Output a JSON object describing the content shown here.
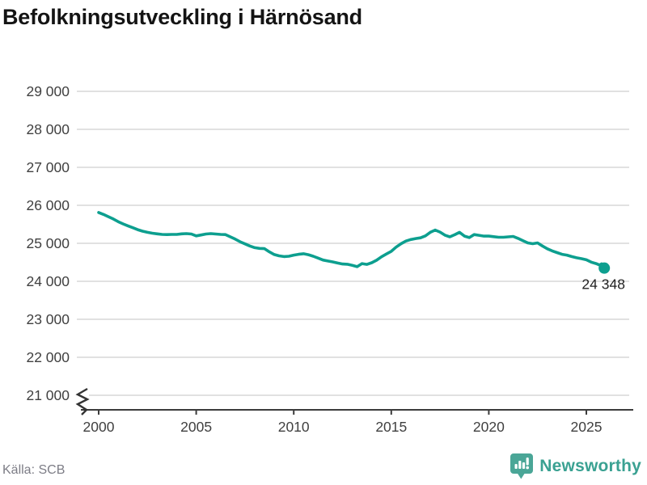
{
  "header": {
    "title": "Befolkningsutveckling i Härnösand"
  },
  "footer": {
    "source": "Källa: SCB",
    "brand": "Newsworthy",
    "brand_icon": "newsworthy-bar-chart-bubble-icon",
    "brand_color": "#3aa192",
    "brand_icon_color": "#4aa697"
  },
  "chart_data": {
    "type": "line",
    "title": "Befolkningsutveckling i Härnösand",
    "xlabel": "",
    "ylabel": "",
    "grid": "horizontal",
    "gridline_color": "#e1e1e1",
    "axis_color": "#3c3c3c",
    "tick_label_color": "#404040",
    "broken_axis": true,
    "x_axis": {
      "ticks": [
        2000,
        2005,
        2010,
        2015,
        2020,
        2025
      ],
      "range": [
        1998.9,
        2027.4
      ]
    },
    "y_axis": {
      "range": [
        21000,
        29000
      ],
      "ticks": [
        {
          "value": 21000,
          "label": "21 000"
        },
        {
          "value": 22000,
          "label": "22 000"
        },
        {
          "value": 23000,
          "label": "23 000"
        },
        {
          "value": 24000,
          "label": "24 000"
        },
        {
          "value": 25000,
          "label": "25 000"
        },
        {
          "value": 26000,
          "label": "26 000"
        },
        {
          "value": 27000,
          "label": "27 000"
        },
        {
          "value": 28000,
          "label": "28 000"
        },
        {
          "value": 29000,
          "label": "29 000"
        }
      ]
    },
    "end_annotation": {
      "label": "24 348",
      "value": 24348
    },
    "series": [
      {
        "name": "Befolkning",
        "color": "#0d9f8f",
        "points": [
          [
            2000.0,
            25810
          ],
          [
            2000.25,
            25760
          ],
          [
            2000.5,
            25700
          ],
          [
            2000.75,
            25640
          ],
          [
            2001.0,
            25570
          ],
          [
            2001.25,
            25510
          ],
          [
            2001.5,
            25460
          ],
          [
            2001.75,
            25410
          ],
          [
            2002.0,
            25360
          ],
          [
            2002.25,
            25320
          ],
          [
            2002.5,
            25290
          ],
          [
            2002.75,
            25265
          ],
          [
            2003.0,
            25250
          ],
          [
            2003.25,
            25235
          ],
          [
            2003.5,
            25230
          ],
          [
            2003.75,
            25235
          ],
          [
            2004.0,
            25235
          ],
          [
            2004.25,
            25250
          ],
          [
            2004.5,
            25255
          ],
          [
            2004.75,
            25245
          ],
          [
            2005.0,
            25195
          ],
          [
            2005.25,
            25220
          ],
          [
            2005.5,
            25245
          ],
          [
            2005.75,
            25255
          ],
          [
            2006.0,
            25245
          ],
          [
            2006.25,
            25235
          ],
          [
            2006.5,
            25230
          ],
          [
            2006.75,
            25170
          ],
          [
            2007.0,
            25110
          ],
          [
            2007.25,
            25040
          ],
          [
            2007.5,
            24985
          ],
          [
            2007.75,
            24930
          ],
          [
            2008.0,
            24885
          ],
          [
            2008.25,
            24865
          ],
          [
            2008.5,
            24860
          ],
          [
            2008.75,
            24775
          ],
          [
            2009.0,
            24705
          ],
          [
            2009.25,
            24670
          ],
          [
            2009.5,
            24650
          ],
          [
            2009.75,
            24660
          ],
          [
            2010.0,
            24690
          ],
          [
            2010.25,
            24710
          ],
          [
            2010.5,
            24725
          ],
          [
            2010.75,
            24700
          ],
          [
            2011.0,
            24660
          ],
          [
            2011.25,
            24610
          ],
          [
            2011.5,
            24560
          ],
          [
            2011.75,
            24535
          ],
          [
            2012.0,
            24510
          ],
          [
            2012.25,
            24480
          ],
          [
            2012.5,
            24455
          ],
          [
            2012.75,
            24450
          ],
          [
            2013.0,
            24420
          ],
          [
            2013.25,
            24385
          ],
          [
            2013.5,
            24465
          ],
          [
            2013.75,
            24445
          ],
          [
            2014.0,
            24490
          ],
          [
            2014.25,
            24555
          ],
          [
            2014.5,
            24645
          ],
          [
            2014.75,
            24720
          ],
          [
            2015.0,
            24790
          ],
          [
            2015.25,
            24900
          ],
          [
            2015.5,
            24990
          ],
          [
            2015.75,
            25060
          ],
          [
            2016.0,
            25100
          ],
          [
            2016.25,
            25125
          ],
          [
            2016.5,
            25145
          ],
          [
            2016.75,
            25195
          ],
          [
            2017.0,
            25290
          ],
          [
            2017.25,
            25350
          ],
          [
            2017.5,
            25295
          ],
          [
            2017.75,
            25215
          ],
          [
            2018.0,
            25170
          ],
          [
            2018.25,
            25225
          ],
          [
            2018.5,
            25290
          ],
          [
            2018.75,
            25190
          ],
          [
            2019.0,
            25150
          ],
          [
            2019.25,
            25230
          ],
          [
            2019.5,
            25210
          ],
          [
            2019.75,
            25190
          ],
          [
            2020.0,
            25190
          ],
          [
            2020.25,
            25175
          ],
          [
            2020.5,
            25160
          ],
          [
            2020.75,
            25160
          ],
          [
            2021.0,
            25170
          ],
          [
            2021.25,
            25180
          ],
          [
            2021.5,
            25130
          ],
          [
            2021.75,
            25070
          ],
          [
            2022.0,
            25010
          ],
          [
            2022.25,
            24990
          ],
          [
            2022.5,
            25010
          ],
          [
            2022.75,
            24930
          ],
          [
            2023.0,
            24855
          ],
          [
            2023.25,
            24800
          ],
          [
            2023.5,
            24755
          ],
          [
            2023.75,
            24710
          ],
          [
            2024.0,
            24690
          ],
          [
            2024.25,
            24650
          ],
          [
            2024.5,
            24620
          ],
          [
            2024.75,
            24595
          ],
          [
            2025.0,
            24565
          ],
          [
            2025.25,
            24505
          ],
          [
            2025.5,
            24465
          ],
          [
            2025.67,
            24430
          ],
          [
            2025.78,
            24460
          ],
          [
            2025.92,
            24348
          ]
        ]
      }
    ]
  }
}
